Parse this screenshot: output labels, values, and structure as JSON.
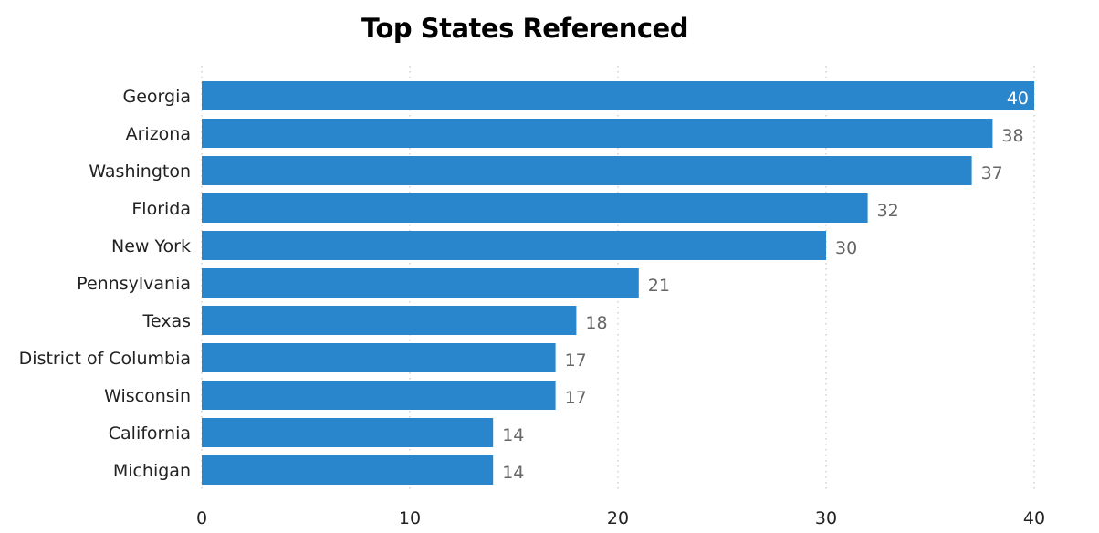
{
  "chart_data": {
    "type": "bar",
    "orientation": "horizontal",
    "title": "Top States Referenced",
    "categories": [
      "Georgia",
      "Arizona",
      "Washington",
      "Florida",
      "New York",
      "Pennsylvania",
      "Texas",
      "District of Columbia",
      "Wisconsin",
      "California",
      "Michigan"
    ],
    "values": [
      40,
      38,
      37,
      32,
      30,
      21,
      18,
      17,
      17,
      14,
      14
    ],
    "xticks": [
      0,
      10,
      20,
      30,
      40
    ],
    "xlim": [
      0,
      40
    ],
    "grid": "vertical-dotted",
    "data_labels": true,
    "bar_color": "#2986cc",
    "gridline_color": "#c8c8c8"
  }
}
